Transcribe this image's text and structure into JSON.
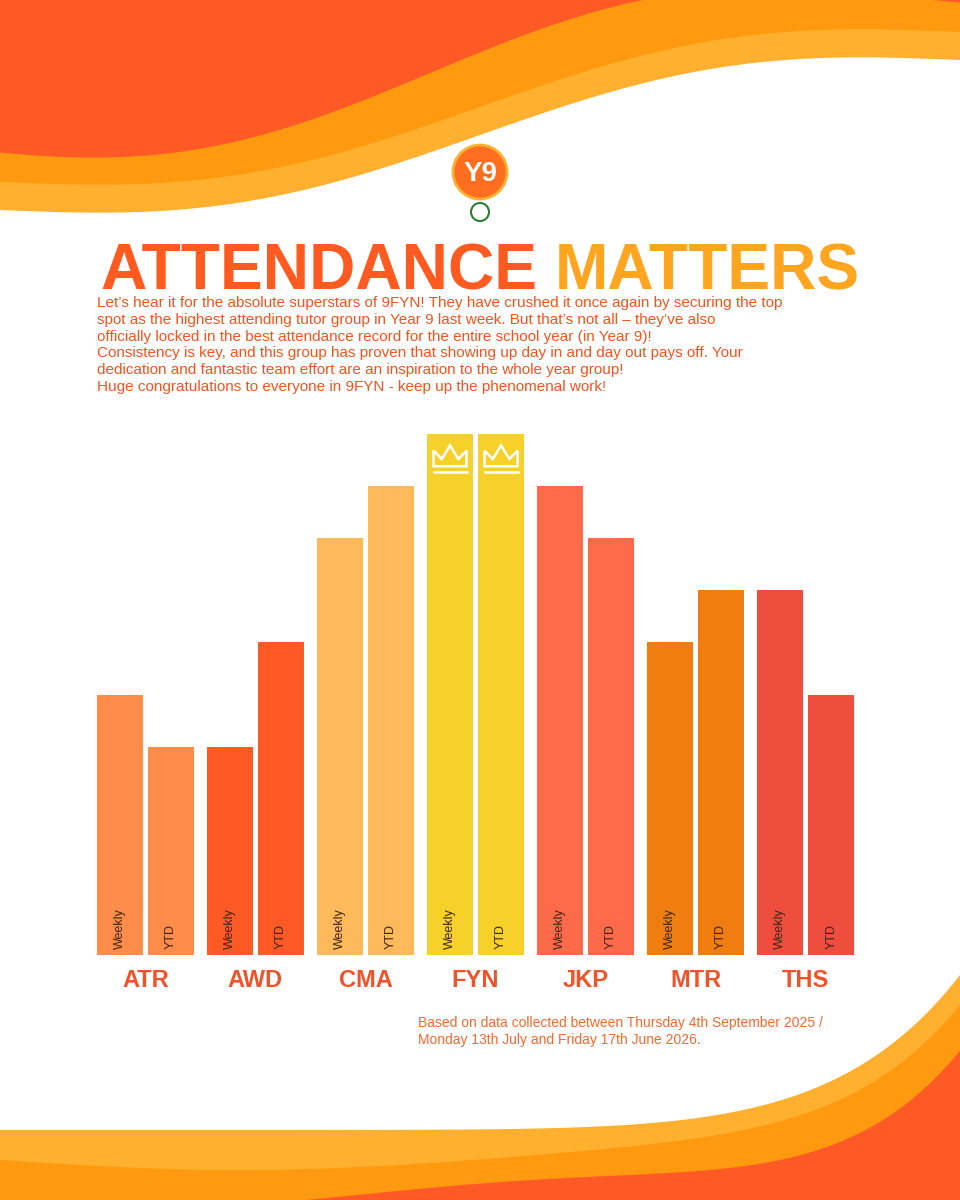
{
  "chart_data": {
    "type": "bar",
    "badge": "Y9",
    "title": "ATTENDANCE MATTERS",
    "subtitle": "Let’s hear it for the absolute superstars of 9FYN! They have crushed it once again by securing the top spot as the highest attending tutor group in Year 9 last week. But that’s not all – they’ve also officially locked in the best attendance record for the entire school year (in Year 9)!\nConsistency is key, and this group has proven that showing up day in and day out pays off. Your dedication and fantastic team effort are an inspiration to the whole year group!\nHuge congratulations to everyone in 9FYN - keep up the phenomenal work!",
    "note": "Based on data collected between Thursday 4th September 2025 / Monday 13th July and Friday 17th June 2026.",
    "categories": [
      "ATR",
      "AWD",
      "CMA",
      "FYN",
      "JKP",
      "MTR",
      "THS"
    ],
    "series": [
      {
        "name": "Weekly",
        "values": [
          5,
          4,
          8,
          10,
          9,
          6,
          7
        ],
        "colors": [
          "#FF8C4B",
          "#FF5A26",
          "#FDB95A",
          "#F6D12A",
          "#FF6B4A",
          "#F07D0F",
          "#EF4E3E"
        ]
      },
      {
        "name": "YTD",
        "values": [
          4,
          6,
          9,
          10,
          8,
          7,
          5
        ],
        "colors": [
          "#FF8C4B",
          "#FF5A26",
          "#FDB95A",
          "#F6D12A",
          "#FF6B4A",
          "#F07D0F",
          "#EF4E3E"
        ]
      }
    ],
    "ylim": [
      0,
      10
    ],
    "tick_labels": "x"
  }
}
